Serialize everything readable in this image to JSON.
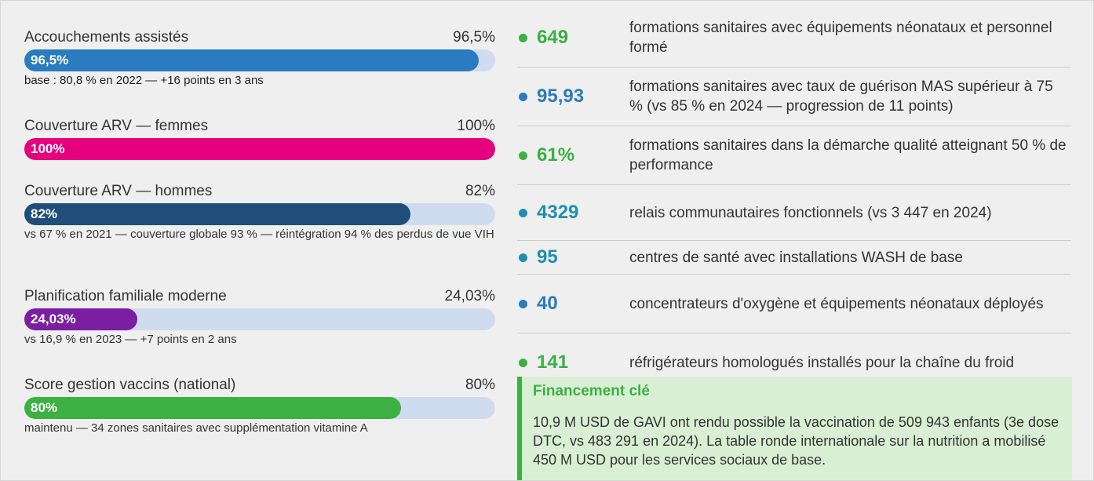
{
  "progress": {
    "xlim": [
      0,
      100
    ],
    "items": [
      {
        "label": "Accouchements assistés",
        "value": 96.5,
        "value_label": "96,5%",
        "color": "#2a7bbf",
        "note": "base : 80,8 % en 2022 — +16 points en 3 ans",
        "note_bold": true
      },
      {
        "label": "Couverture ARV — femmes",
        "value": 100,
        "value_label": "100%",
        "color": "#e6007e",
        "note": null
      },
      {
        "label": "Couverture ARV — hommes",
        "value": 82,
        "value_label": "82%",
        "color": "#1f4e79",
        "note": "vs 67 % en 2021 — couverture globale 93 % — réintégration 94 % des perdus de vue VIH"
      },
      {
        "label": "Planification familiale moderne",
        "value": 24.03,
        "value_label": "24,03%",
        "color": "#7b1fa2",
        "note": "vs 16,9 % en 2023 — +7 points en 2 ans"
      },
      {
        "label": "Score gestion vaccins (national)",
        "value": 80,
        "value_label": "80%",
        "color": "#3cb043",
        "note": "maintenu — 34 zones sanitaires avec supplémentation vitamine A"
      }
    ]
  },
  "stats": [
    {
      "number": "649",
      "color": "#3cb043",
      "text": "formations sanitaires avec équipements néonataux et personnel formé"
    },
    {
      "number": "95,93",
      "color": "#2a7bbf",
      "text": "formations sanitaires avec taux de guérison MAS supérieur à 75 % (vs 85 % en 2024 — progression de 11 points)"
    },
    {
      "number": "61%",
      "color": "#3cb043",
      "text": "formations sanitaires dans la démarche qualité atteignant 50 % de performance"
    },
    {
      "number": "4329",
      "color": "#1e8fb0",
      "text": "relais communautaires fonctionnels (vs 3 447 en 2024)"
    },
    {
      "number": "95",
      "color": "#1e8fb0",
      "text": "centres de santé avec installations WASH de base"
    },
    {
      "number": "40",
      "color": "#2a7bbf",
      "text": "concentrateurs d'oxygène et équipements néonataux déployés"
    },
    {
      "number": "141",
      "color": "#3cb043",
      "text": "réfrigérateurs homologués installés pour la chaîne du froid"
    }
  ],
  "financing": {
    "title": "Financement clé",
    "text": "10,9 M USD de GAVI ont rendu possible la vaccination de 509 943 enfants (3e dose DTC, vs 483 291 en 2024). La table ronde internationale sur la nutrition a mobilisé 450 M USD pour les services sociaux de base."
  }
}
